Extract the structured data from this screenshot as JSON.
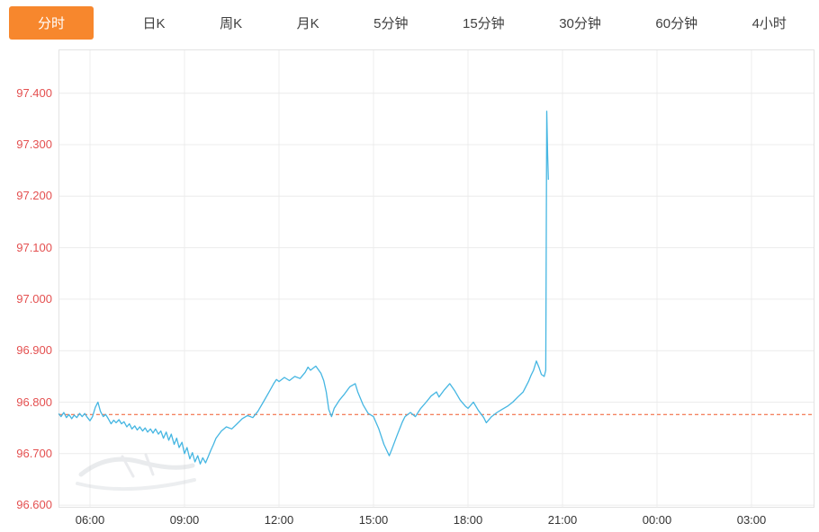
{
  "tabs": {
    "items": [
      {
        "label": "分时",
        "selected": true
      },
      {
        "label": "日K",
        "selected": false
      },
      {
        "label": "周K",
        "selected": false
      },
      {
        "label": "月K",
        "selected": false
      },
      {
        "label": "5分钟",
        "selected": false
      },
      {
        "label": "15分钟",
        "selected": false
      },
      {
        "label": "30分钟",
        "selected": false
      },
      {
        "label": "60分钟",
        "selected": false
      },
      {
        "label": "4小时",
        "selected": false
      }
    ]
  },
  "colors": {
    "accent_tab": "#f7872d",
    "grid": "#ececec",
    "border": "#e3e3e3",
    "y_tick": "#e45050",
    "x_tick": "#333333",
    "line": "#45b6e2",
    "reference": "#f0592a"
  },
  "chart_data": {
    "type": "line",
    "title": "",
    "xlabel": "",
    "ylabel": "",
    "legend": false,
    "grid": true,
    "x_axis": {
      "range": [
        5,
        29
      ],
      "ticks": [
        {
          "t": 6,
          "label": "06:00"
        },
        {
          "t": 9,
          "label": "09:00"
        },
        {
          "t": 12,
          "label": "12:00"
        },
        {
          "t": 15,
          "label": "15:00"
        },
        {
          "t": 18,
          "label": "18:00"
        },
        {
          "t": 21,
          "label": "21:00"
        },
        {
          "t": 24,
          "label": "00:00"
        },
        {
          "t": 27,
          "label": "03:00"
        }
      ]
    },
    "y_axis": {
      "range": [
        96.595,
        97.485
      ],
      "ticks": [
        {
          "v": 97.4,
          "label": "97.400"
        },
        {
          "v": 97.3,
          "label": "97.300"
        },
        {
          "v": 97.2,
          "label": "97.200"
        },
        {
          "v": 97.1,
          "label": "97.100"
        },
        {
          "v": 97.0,
          "label": "97.000"
        },
        {
          "v": 96.9,
          "label": "96.900"
        },
        {
          "v": 96.8,
          "label": "96.800"
        },
        {
          "v": 96.7,
          "label": "96.700"
        },
        {
          "v": 96.6,
          "label": "96.600"
        }
      ]
    },
    "reference_line": {
      "value": 96.776,
      "style": "dashed",
      "color": "#f0592a"
    },
    "series": [
      {
        "name": "price",
        "color": "#45b6e2",
        "points": [
          [
            5.0,
            96.778
          ],
          [
            5.08,
            96.772
          ],
          [
            5.17,
            96.78
          ],
          [
            5.25,
            96.77
          ],
          [
            5.33,
            96.776
          ],
          [
            5.42,
            96.768
          ],
          [
            5.5,
            96.775
          ],
          [
            5.58,
            96.77
          ],
          [
            5.67,
            96.778
          ],
          [
            5.75,
            96.772
          ],
          [
            5.83,
            96.778
          ],
          [
            5.92,
            96.77
          ],
          [
            6.0,
            96.764
          ],
          [
            6.08,
            96.772
          ],
          [
            6.17,
            96.79
          ],
          [
            6.25,
            96.8
          ],
          [
            6.33,
            96.782
          ],
          [
            6.42,
            96.772
          ],
          [
            6.5,
            96.776
          ],
          [
            6.58,
            96.768
          ],
          [
            6.67,
            96.758
          ],
          [
            6.75,
            96.765
          ],
          [
            6.83,
            96.76
          ],
          [
            6.92,
            96.766
          ],
          [
            7.0,
            96.758
          ],
          [
            7.08,
            96.762
          ],
          [
            7.17,
            96.752
          ],
          [
            7.25,
            96.758
          ],
          [
            7.33,
            96.748
          ],
          [
            7.42,
            96.754
          ],
          [
            7.5,
            96.746
          ],
          [
            7.58,
            96.752
          ],
          [
            7.67,
            96.744
          ],
          [
            7.75,
            96.75
          ],
          [
            7.83,
            96.742
          ],
          [
            7.92,
            96.748
          ],
          [
            8.0,
            96.74
          ],
          [
            8.08,
            96.748
          ],
          [
            8.17,
            96.738
          ],
          [
            8.25,
            96.744
          ],
          [
            8.33,
            96.73
          ],
          [
            8.42,
            96.742
          ],
          [
            8.5,
            96.726
          ],
          [
            8.58,
            96.738
          ],
          [
            8.67,
            96.718
          ],
          [
            8.75,
            96.73
          ],
          [
            8.83,
            96.712
          ],
          [
            8.92,
            96.722
          ],
          [
            9.0,
            96.7
          ],
          [
            9.08,
            96.712
          ],
          [
            9.17,
            96.69
          ],
          [
            9.25,
            96.702
          ],
          [
            9.33,
            96.684
          ],
          [
            9.42,
            96.696
          ],
          [
            9.5,
            96.68
          ],
          [
            9.58,
            96.692
          ],
          [
            9.67,
            96.682
          ],
          [
            9.75,
            96.694
          ],
          [
            9.83,
            96.706
          ],
          [
            9.92,
            96.718
          ],
          [
            10.0,
            96.73
          ],
          [
            10.17,
            96.744
          ],
          [
            10.33,
            96.752
          ],
          [
            10.5,
            96.748
          ],
          [
            10.67,
            96.758
          ],
          [
            10.83,
            96.768
          ],
          [
            11.0,
            96.774
          ],
          [
            11.17,
            96.77
          ],
          [
            11.33,
            96.782
          ],
          [
            11.5,
            96.8
          ],
          [
            11.67,
            96.818
          ],
          [
            11.83,
            96.836
          ],
          [
            11.92,
            96.844
          ],
          [
            12.0,
            96.84
          ],
          [
            12.17,
            96.848
          ],
          [
            12.33,
            96.842
          ],
          [
            12.5,
            96.85
          ],
          [
            12.67,
            96.846
          ],
          [
            12.83,
            96.858
          ],
          [
            12.92,
            96.868
          ],
          [
            13.0,
            96.862
          ],
          [
            13.17,
            96.87
          ],
          [
            13.33,
            96.856
          ],
          [
            13.42,
            96.842
          ],
          [
            13.5,
            96.82
          ],
          [
            13.58,
            96.786
          ],
          [
            13.67,
            96.772
          ],
          [
            13.75,
            96.788
          ],
          [
            13.92,
            96.804
          ],
          [
            14.08,
            96.816
          ],
          [
            14.25,
            96.83
          ],
          [
            14.42,
            96.836
          ],
          [
            14.5,
            96.82
          ],
          [
            14.67,
            96.795
          ],
          [
            14.83,
            96.778
          ],
          [
            15.0,
            96.772
          ],
          [
            15.17,
            96.748
          ],
          [
            15.33,
            96.718
          ],
          [
            15.5,
            96.696
          ],
          [
            15.58,
            96.708
          ],
          [
            15.75,
            96.736
          ],
          [
            15.92,
            96.762
          ],
          [
            16.0,
            96.772
          ],
          [
            16.17,
            96.78
          ],
          [
            16.33,
            96.772
          ],
          [
            16.5,
            96.788
          ],
          [
            16.67,
            96.8
          ],
          [
            16.83,
            96.812
          ],
          [
            17.0,
            96.82
          ],
          [
            17.08,
            96.81
          ],
          [
            17.25,
            96.824
          ],
          [
            17.42,
            96.836
          ],
          [
            17.58,
            96.822
          ],
          [
            17.75,
            96.804
          ],
          [
            17.92,
            96.792
          ],
          [
            18.0,
            96.788
          ],
          [
            18.17,
            96.8
          ],
          [
            18.33,
            96.784
          ],
          [
            18.5,
            96.77
          ],
          [
            18.58,
            96.76
          ],
          [
            18.75,
            96.772
          ],
          [
            18.92,
            96.78
          ],
          [
            19.08,
            96.786
          ],
          [
            19.25,
            96.792
          ],
          [
            19.42,
            96.8
          ],
          [
            19.58,
            96.81
          ],
          [
            19.75,
            96.82
          ],
          [
            19.92,
            96.84
          ],
          [
            20.0,
            96.852
          ],
          [
            20.08,
            96.862
          ],
          [
            20.17,
            96.88
          ],
          [
            20.25,
            96.868
          ],
          [
            20.33,
            96.854
          ],
          [
            20.42,
            96.85
          ],
          [
            20.47,
            96.862
          ],
          [
            20.5,
            97.365
          ],
          [
            20.53,
            97.28
          ],
          [
            20.55,
            97.232
          ]
        ]
      }
    ]
  }
}
